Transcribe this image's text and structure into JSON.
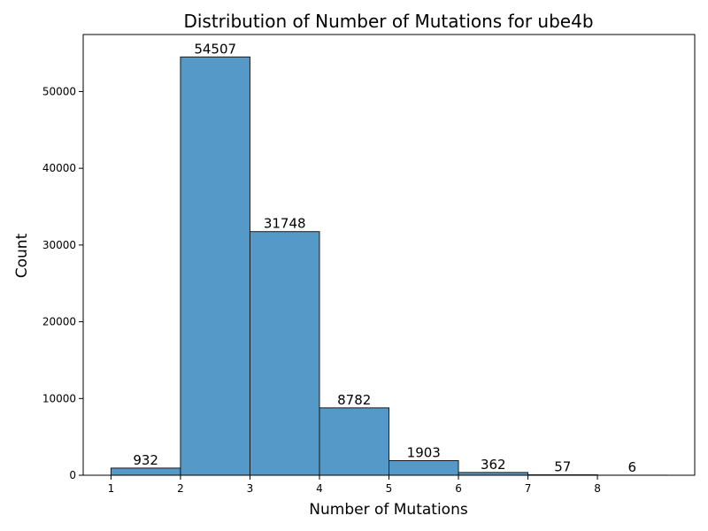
{
  "chart_data": {
    "type": "bar",
    "title": "Distribution of Number of Mutations for ube4b",
    "xlabel": "Number of Mutations",
    "ylabel": "Count",
    "bins": [
      {
        "start": 1,
        "end": 2,
        "count": 932,
        "label": "932"
      },
      {
        "start": 2,
        "end": 3,
        "count": 54507,
        "label": "54507"
      },
      {
        "start": 3,
        "end": 4,
        "count": 31748,
        "label": "31748"
      },
      {
        "start": 4,
        "end": 5,
        "count": 8782,
        "label": "8782"
      },
      {
        "start": 5,
        "end": 6,
        "count": 1903,
        "label": "1903"
      },
      {
        "start": 6,
        "end": 7,
        "count": 362,
        "label": "362"
      },
      {
        "start": 7,
        "end": 8,
        "count": 57,
        "label": "57"
      },
      {
        "start": 8,
        "end": 9,
        "count": 6,
        "label": "6"
      }
    ],
    "xticks": [
      "1",
      "2",
      "3",
      "4",
      "5",
      "6",
      "7",
      "8"
    ],
    "yticks": [
      "0",
      "10000",
      "20000",
      "30000",
      "40000",
      "50000"
    ],
    "xlim": [
      0.6,
      9.4
    ],
    "ylim": [
      0,
      57432
    ],
    "bar_color": "#5499c7",
    "grid": false
  }
}
